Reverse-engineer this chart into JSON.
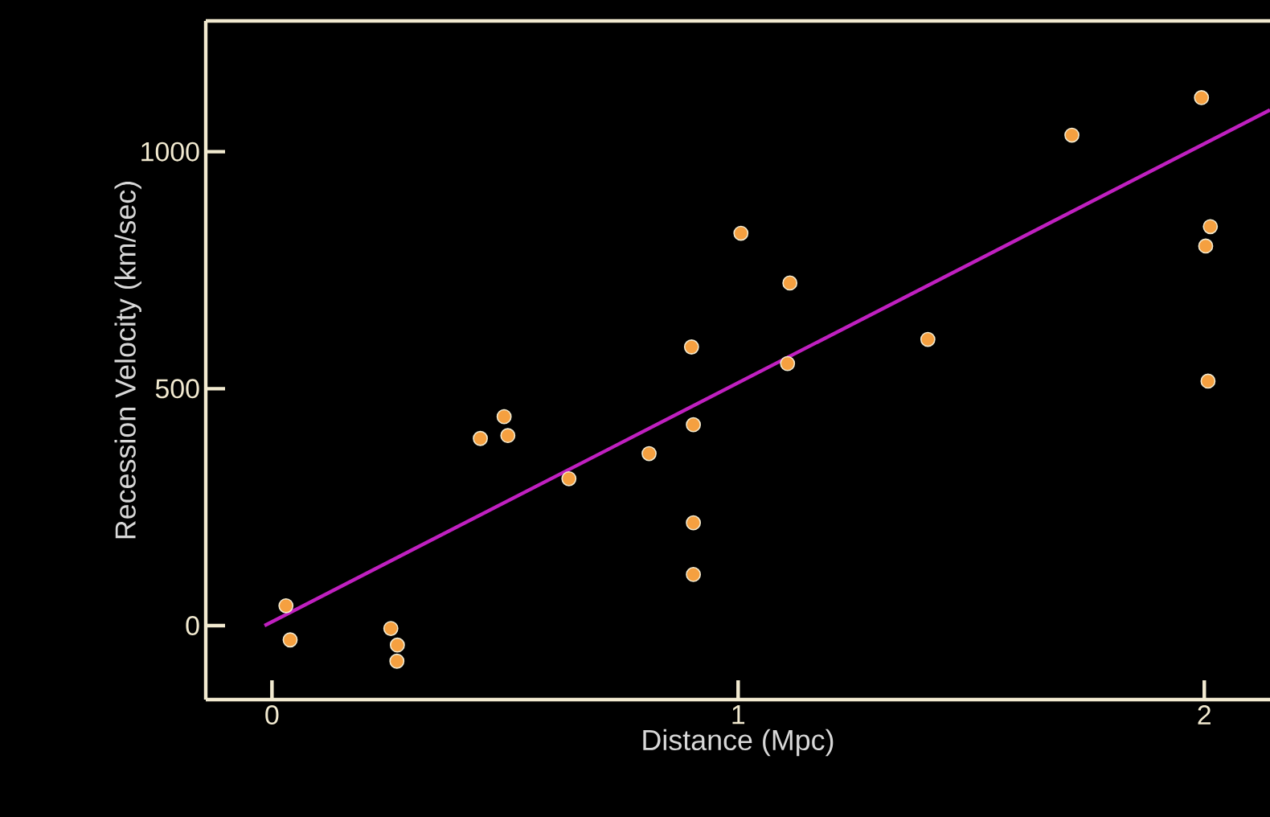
{
  "chart_data": {
    "type": "scatter",
    "xlabel": "Distance (Mpc)",
    "ylabel": "Recession Velocity (km/sec)",
    "xlim": [
      -0.142,
      2.141
    ],
    "ylim": [
      -156,
      1276
    ],
    "xticks": [
      0,
      1,
      2
    ],
    "yticks": [
      0,
      500,
      1000
    ],
    "grid": false,
    "series": [
      {
        "color": "#f5a040",
        "marker": "circle",
        "x": [
          0.03,
          0.039,
          0.255,
          0.269,
          0.268,
          0.447,
          0.498,
          0.506,
          0.637,
          0.809,
          0.9,
          0.904,
          0.904,
          0.904,
          1.106,
          1.006,
          1.111,
          1.407,
          1.716,
          1.994,
          2.013,
          2.003,
          2.008
        ],
        "values": [
          42,
          -30,
          -6,
          -41,
          -75,
          395,
          441,
          401,
          310,
          363,
          588,
          424,
          217,
          108,
          553,
          828,
          723,
          604,
          1035,
          1114,
          842,
          801,
          516
        ]
      },
      {
        "type": "line",
        "color": "#c020c0",
        "marker": "none",
        "x": [
          -0.016,
          2.141
        ],
        "values": [
          0,
          1088
        ]
      }
    ]
  }
}
